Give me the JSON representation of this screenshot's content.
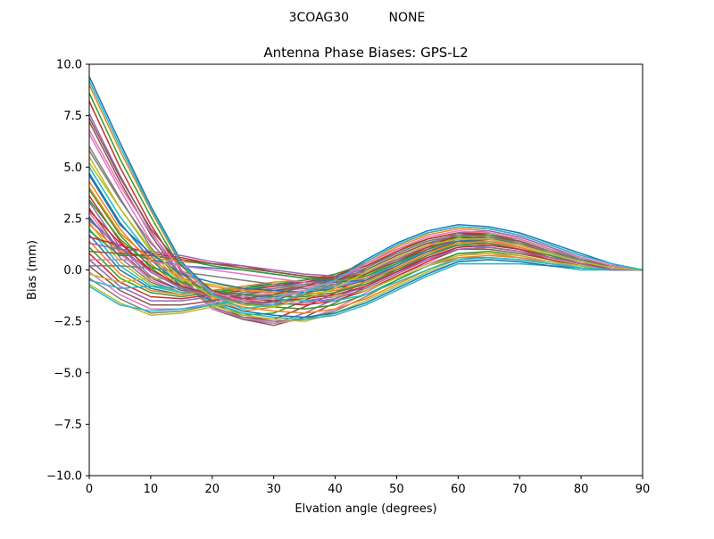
{
  "figure": {
    "suptitle": "3COAG30          NONE"
  },
  "chart_data": {
    "type": "line",
    "title": "Antenna Phase Biases: GPS-L2",
    "xlabel": "Elvation angle (degrees)",
    "ylabel": "Bias (mm)",
    "xlim": [
      0,
      90
    ],
    "ylim": [
      -10,
      10
    ],
    "x_ticks": [
      0,
      10,
      20,
      30,
      40,
      50,
      60,
      70,
      80,
      90
    ],
    "y_ticks": [
      -10.0,
      -7.5,
      -5.0,
      -2.5,
      0.0,
      2.5,
      5.0,
      7.5,
      10.0
    ],
    "x_tick_labels": [
      "0",
      "10",
      "20",
      "30",
      "40",
      "50",
      "60",
      "70",
      "80",
      "90"
    ],
    "y_tick_labels": [
      "−10.0",
      "−7.5",
      "−5.0",
      "−2.5",
      "0.0",
      "2.5",
      "5.0",
      "7.5",
      "10.0"
    ],
    "grid": false,
    "legend": "none",
    "colors": [
      "#1f77b4",
      "#ff7f0e",
      "#2ca02c",
      "#d62728",
      "#9467bd",
      "#8c564b",
      "#e377c2",
      "#7f7f7f",
      "#bcbd22",
      "#17becf"
    ],
    "x": [
      0,
      5,
      10,
      15,
      20,
      25,
      30,
      35,
      40,
      45,
      50,
      55,
      60,
      65,
      70,
      75,
      80,
      85,
      90
    ],
    "series": [
      {
        "values": [
          9.4,
          6.2,
          3.1,
          0.4,
          -1.1,
          -1.7,
          -1.5,
          -1.0,
          -0.4,
          0.5,
          1.3,
          1.9,
          2.2,
          2.1,
          1.8,
          1.3,
          0.8,
          0.3,
          0.0
        ]
      },
      {
        "values": [
          9.0,
          5.8,
          2.9,
          0.2,
          -1.3,
          -2.0,
          -1.8,
          -1.2,
          -0.6,
          0.3,
          1.1,
          1.7,
          2.0,
          1.9,
          1.6,
          1.1,
          0.6,
          0.2,
          0.0
        ]
      },
      {
        "values": [
          8.6,
          5.4,
          2.6,
          0.0,
          -1.5,
          -2.2,
          -2.1,
          -1.5,
          -0.8,
          0.1,
          0.9,
          1.5,
          1.8,
          1.7,
          1.4,
          0.9,
          0.5,
          0.1,
          0.0
        ]
      },
      {
        "values": [
          8.2,
          5.0,
          2.2,
          -0.1,
          -1.6,
          -2.3,
          -2.4,
          -1.8,
          -1.1,
          -0.2,
          0.6,
          1.2,
          1.6,
          1.5,
          1.2,
          0.8,
          0.4,
          0.1,
          0.0
        ]
      },
      {
        "values": [
          7.6,
          4.6,
          1.9,
          -0.3,
          -1.8,
          -2.4,
          -2.6,
          -2.1,
          -1.4,
          -0.5,
          0.3,
          0.9,
          1.3,
          1.3,
          1.0,
          0.6,
          0.3,
          0.0,
          0.0
        ]
      },
      {
        "values": [
          7.2,
          4.3,
          1.7,
          -0.4,
          -1.9,
          -2.4,
          -2.7,
          -2.3,
          -1.6,
          -0.8,
          0.0,
          0.6,
          1.0,
          1.0,
          0.8,
          0.5,
          0.2,
          0.0,
          0.0
        ]
      },
      {
        "values": [
          6.6,
          3.9,
          1.4,
          -0.5,
          -1.9,
          -2.3,
          -2.6,
          -2.4,
          -1.9,
          -1.1,
          -0.3,
          0.3,
          0.8,
          0.8,
          0.6,
          0.4,
          0.1,
          0.0,
          0.0
        ]
      },
      {
        "values": [
          6.0,
          3.5,
          1.1,
          -0.6,
          -1.8,
          -2.3,
          -2.5,
          -2.4,
          -2.0,
          -1.3,
          -0.5,
          0.2,
          0.6,
          0.6,
          0.5,
          0.3,
          0.1,
          0.0,
          0.0
        ]
      },
      {
        "values": [
          5.5,
          3.0,
          0.9,
          -0.7,
          -1.7,
          -2.2,
          -2.4,
          -2.5,
          -2.1,
          -1.5,
          -0.8,
          -0.1,
          0.4,
          0.5,
          0.4,
          0.2,
          0.1,
          0.0,
          0.0
        ]
      },
      {
        "values": [
          5.0,
          2.6,
          0.7,
          -0.8,
          -1.6,
          -2.1,
          -2.3,
          -2.4,
          -2.2,
          -1.7,
          -1.0,
          -0.3,
          0.3,
          0.3,
          0.3,
          0.2,
          0.0,
          0.0,
          0.0
        ]
      },
      {
        "values": [
          4.7,
          2.3,
          0.5,
          -0.8,
          -1.5,
          -2.0,
          -2.2,
          -2.3,
          -2.1,
          -1.6,
          -0.9,
          -0.2,
          0.4,
          0.5,
          0.4,
          0.2,
          0.1,
          0.0,
          0.0
        ]
      },
      {
        "values": [
          4.3,
          2.0,
          0.3,
          -0.9,
          -1.4,
          -1.8,
          -2.0,
          -2.1,
          -1.9,
          -1.4,
          -0.7,
          0.0,
          0.6,
          0.7,
          0.6,
          0.3,
          0.1,
          0.0,
          0.0
        ]
      },
      {
        "values": [
          3.9,
          1.7,
          0.1,
          -0.9,
          -1.3,
          -1.6,
          -1.8,
          -1.9,
          -1.7,
          -1.2,
          -0.5,
          0.2,
          0.8,
          0.9,
          0.7,
          0.4,
          0.2,
          0.0,
          0.0
        ]
      },
      {
        "values": [
          3.6,
          1.4,
          -0.1,
          -0.9,
          -1.2,
          -1.5,
          -1.6,
          -1.7,
          -1.5,
          -1.0,
          -0.3,
          0.4,
          1.0,
          1.1,
          0.9,
          0.5,
          0.2,
          0.0,
          0.0
        ]
      },
      {
        "values": [
          3.3,
          1.1,
          -0.3,
          -1.0,
          -1.1,
          -1.3,
          -1.5,
          -1.5,
          -1.3,
          -0.8,
          -0.1,
          0.6,
          1.1,
          1.2,
          1.0,
          0.6,
          0.3,
          0.1,
          0.0
        ]
      },
      {
        "values": [
          3.0,
          0.9,
          -0.4,
          -1.0,
          -1.1,
          -1.2,
          -1.3,
          -1.3,
          -1.1,
          -0.6,
          0.1,
          0.8,
          1.3,
          1.4,
          1.1,
          0.7,
          0.3,
          0.1,
          0.0
        ]
      },
      {
        "values": [
          2.8,
          0.8,
          -0.5,
          -1.1,
          -1.2,
          -1.2,
          -1.2,
          -1.1,
          -0.9,
          -0.4,
          0.3,
          1.0,
          1.4,
          1.5,
          1.2,
          0.8,
          0.4,
          0.1,
          0.0
        ]
      },
      {
        "values": [
          2.6,
          0.6,
          -0.6,
          -1.1,
          -1.2,
          -1.1,
          -1.0,
          -0.9,
          -0.7,
          -0.2,
          0.5,
          1.1,
          1.5,
          1.5,
          1.3,
          0.8,
          0.4,
          0.1,
          0.0
        ]
      },
      {
        "values": [
          2.3,
          0.4,
          -0.7,
          -1.1,
          -1.1,
          -1.0,
          -0.9,
          -0.8,
          -0.6,
          -0.1,
          0.6,
          1.2,
          1.6,
          1.6,
          1.3,
          0.9,
          0.4,
          0.1,
          0.0
        ]
      },
      {
        "values": [
          2.0,
          0.2,
          -0.8,
          -1.1,
          -1.0,
          -0.9,
          -0.8,
          -0.7,
          -0.5,
          0.0,
          0.7,
          1.3,
          1.7,
          1.7,
          1.4,
          0.9,
          0.5,
          0.1,
          0.0
        ]
      },
      {
        "values": [
          1.7,
          0.0,
          -0.9,
          -1.2,
          -1.0,
          -0.8,
          -0.7,
          -0.6,
          -0.4,
          0.1,
          0.8,
          1.4,
          1.7,
          1.7,
          1.4,
          0.9,
          0.5,
          0.2,
          0.0
        ]
      },
      {
        "values": [
          1.4,
          -0.2,
          -1.0,
          -1.2,
          -1.0,
          -0.8,
          -0.6,
          -0.5,
          -0.3,
          0.2,
          0.9,
          1.5,
          1.8,
          1.8,
          1.5,
          1.0,
          0.5,
          0.2,
          0.0
        ]
      },
      {
        "values": [
          1.1,
          -0.4,
          -1.1,
          -1.3,
          -1.1,
          -0.9,
          -0.7,
          -0.5,
          -0.2,
          0.3,
          1.0,
          1.5,
          1.8,
          1.8,
          1.5,
          1.0,
          0.5,
          0.2,
          0.0
        ]
      },
      {
        "values": [
          0.8,
          -0.6,
          -1.3,
          -1.4,
          -1.2,
          -1.0,
          -0.8,
          -0.6,
          -0.3,
          0.2,
          0.9,
          1.5,
          1.8,
          1.7,
          1.4,
          0.9,
          0.5,
          0.2,
          0.0
        ]
      },
      {
        "values": [
          0.5,
          -0.8,
          -1.5,
          -1.5,
          -1.3,
          -1.1,
          -0.9,
          -0.7,
          -0.4,
          0.1,
          0.8,
          1.4,
          1.7,
          1.6,
          1.3,
          0.9,
          0.4,
          0.1,
          0.0
        ]
      },
      {
        "values": [
          0.2,
          -1.0,
          -1.7,
          -1.7,
          -1.5,
          -1.2,
          -1.0,
          -0.8,
          -0.5,
          0.0,
          0.7,
          1.3,
          1.6,
          1.5,
          1.3,
          0.8,
          0.4,
          0.1,
          0.0
        ]
      },
      {
        "values": [
          -0.1,
          -1.2,
          -1.9,
          -1.9,
          -1.6,
          -1.3,
          -1.1,
          -0.9,
          -0.6,
          -0.1,
          0.6,
          1.2,
          1.5,
          1.4,
          1.2,
          0.8,
          0.4,
          0.1,
          0.0
        ]
      },
      {
        "values": [
          -0.4,
          -1.4,
          -2.1,
          -2.0,
          -1.7,
          -1.4,
          -1.2,
          -1.0,
          -0.7,
          -0.2,
          0.5,
          1.1,
          1.4,
          1.3,
          1.1,
          0.7,
          0.3,
          0.1,
          0.0
        ]
      },
      {
        "values": [
          -0.7,
          -1.6,
          -2.2,
          -2.1,
          -1.8,
          -1.5,
          -1.3,
          -1.0,
          -0.8,
          -0.3,
          0.4,
          1.0,
          1.3,
          1.2,
          1.0,
          0.6,
          0.3,
          0.0,
          0.0
        ]
      },
      {
        "values": [
          -0.8,
          -1.7,
          -2.0,
          -1.9,
          -1.7,
          -1.5,
          -1.3,
          -1.1,
          -0.8,
          -0.4,
          0.3,
          0.9,
          1.2,
          1.1,
          0.9,
          0.6,
          0.3,
          0.0,
          0.0
        ]
      },
      {
        "values": [
          2.5,
          1.0,
          0.5,
          0.2,
          0.1,
          0.0,
          -0.2,
          -0.4,
          -0.6,
          -0.5,
          0.0,
          0.7,
          1.3,
          1.5,
          1.3,
          0.9,
          0.5,
          0.2,
          0.0
        ]
      },
      {
        "values": [
          2.2,
          0.9,
          0.6,
          0.4,
          0.3,
          0.1,
          -0.1,
          -0.3,
          -0.5,
          -0.4,
          0.1,
          0.8,
          1.4,
          1.6,
          1.4,
          0.9,
          0.5,
          0.2,
          0.0
        ]
      },
      {
        "values": [
          1.9,
          0.7,
          0.7,
          0.5,
          0.2,
          0.0,
          -0.2,
          -0.4,
          -0.5,
          -0.3,
          0.3,
          1.0,
          1.6,
          1.7,
          1.5,
          1.0,
          0.5,
          0.2,
          0.0
        ]
      },
      {
        "values": [
          1.6,
          1.2,
          0.8,
          0.6,
          0.3,
          0.2,
          -0.1,
          -0.3,
          -0.4,
          -0.2,
          0.4,
          1.1,
          1.7,
          1.8,
          1.5,
          1.0,
          0.6,
          0.2,
          0.0
        ]
      },
      {
        "values": [
          1.3,
          1.0,
          0.9,
          0.7,
          0.4,
          0.2,
          0.0,
          -0.2,
          -0.3,
          -0.1,
          0.5,
          1.2,
          1.8,
          1.9,
          1.6,
          1.1,
          0.6,
          0.2,
          0.0
        ]
      },
      {
        "values": [
          0.9,
          0.8,
          0.7,
          0.5,
          0.3,
          0.1,
          -0.1,
          -0.3,
          -0.5,
          -0.2,
          0.4,
          1.0,
          1.5,
          1.6,
          1.4,
          0.9,
          0.5,
          0.2,
          0.0
        ]
      },
      {
        "values": [
          0.5,
          0.5,
          0.4,
          0.2,
          0.0,
          -0.2,
          -0.4,
          -0.6,
          -0.8,
          -0.5,
          0.1,
          0.7,
          1.2,
          1.3,
          1.1,
          0.7,
          0.4,
          0.1,
          0.0
        ]
      },
      {
        "values": [
          0.2,
          0.2,
          0.1,
          -0.1,
          -0.3,
          -0.5,
          -0.7,
          -0.9,
          -1.0,
          -0.7,
          -0.1,
          0.5,
          1.0,
          1.1,
          0.9,
          0.6,
          0.3,
          0.1,
          0.0
        ]
      },
      {
        "values": [
          -0.2,
          -0.6,
          -0.4,
          -0.5,
          -0.7,
          -0.9,
          -1.1,
          -1.2,
          -1.3,
          -1.0,
          -0.4,
          0.2,
          0.7,
          0.8,
          0.7,
          0.4,
          0.2,
          0.0,
          0.0
        ]
      },
      {
        "values": [
          -0.5,
          -0.9,
          -0.8,
          -0.9,
          -1.0,
          -1.2,
          -1.4,
          -1.5,
          -1.5,
          -1.2,
          -0.6,
          0.0,
          0.5,
          0.6,
          0.5,
          0.3,
          0.1,
          0.0,
          0.0
        ]
      },
      {
        "values": [
          4.6,
          2.2,
          0.8,
          -0.2,
          -0.6,
          -0.9,
          -1.0,
          -1.1,
          -0.9,
          -0.5,
          0.2,
          0.9,
          1.4,
          1.5,
          1.2,
          0.8,
          0.4,
          0.1,
          0.0
        ]
      },
      {
        "values": [
          4.0,
          1.8,
          0.5,
          -0.4,
          -0.8,
          -1.0,
          -1.1,
          -1.2,
          -1.0,
          -0.6,
          0.1,
          0.8,
          1.3,
          1.4,
          1.1,
          0.7,
          0.3,
          0.1,
          0.0
        ]
      },
      {
        "values": [
          3.4,
          1.5,
          0.2,
          -0.6,
          -1.0,
          -1.2,
          -1.3,
          -1.3,
          -1.1,
          -0.7,
          0.0,
          0.7,
          1.2,
          1.3,
          1.0,
          0.7,
          0.3,
          0.1,
          0.0
        ]
      },
      {
        "values": [
          2.9,
          1.3,
          0.0,
          -0.8,
          -1.2,
          -1.4,
          -1.5,
          -1.4,
          -1.2,
          -0.8,
          -0.1,
          0.6,
          1.1,
          1.2,
          1.0,
          0.6,
          0.3,
          0.1,
          0.0
        ]
      },
      {
        "values": [
          2.4,
          1.1,
          -0.1,
          -0.9,
          -1.3,
          -1.6,
          -1.7,
          -1.6,
          -1.4,
          -0.9,
          -0.2,
          0.5,
          1.0,
          1.1,
          0.9,
          0.6,
          0.3,
          0.0,
          0.0
        ]
      },
      {
        "values": [
          7.4,
          4.5,
          2.0,
          0.2,
          -1.0,
          -1.4,
          -1.2,
          -0.8,
          -0.3,
          0.4,
          1.2,
          1.8,
          2.1,
          2.0,
          1.7,
          1.2,
          0.7,
          0.3,
          0.0
        ]
      },
      {
        "values": [
          6.8,
          4.1,
          1.8,
          0.0,
          -1.1,
          -1.5,
          -1.4,
          -1.0,
          -0.5,
          0.3,
          1.0,
          1.6,
          1.9,
          1.8,
          1.5,
          1.0,
          0.6,
          0.2,
          0.0
        ]
      },
      {
        "values": [
          5.8,
          3.4,
          1.3,
          -0.2,
          -1.2,
          -1.6,
          -1.6,
          -1.2,
          -0.7,
          0.1,
          0.8,
          1.4,
          1.7,
          1.6,
          1.3,
          0.9,
          0.5,
          0.1,
          0.0
        ]
      },
      {
        "values": [
          5.2,
          3.0,
          1.0,
          -0.4,
          -1.3,
          -1.7,
          -1.8,
          -1.4,
          -0.9,
          -0.1,
          0.6,
          1.2,
          1.5,
          1.5,
          1.2,
          0.8,
          0.4,
          0.1,
          0.0
        ]
      },
      {
        "values": [
          9.2,
          6.0,
          3.0,
          0.3,
          -1.2,
          -1.9,
          -1.7,
          -1.1,
          -0.5,
          0.4,
          1.2,
          1.8,
          2.1,
          2.0,
          1.7,
          1.2,
          0.7,
          0.3,
          0.0
        ]
      }
    ]
  }
}
